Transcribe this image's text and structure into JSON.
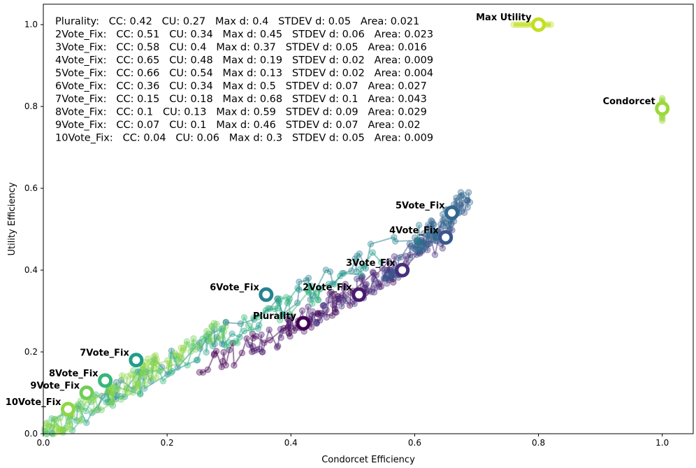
{
  "chart_data": {
    "type": "scatter",
    "xlabel": "Condorcet Efficiency",
    "ylabel": "Utility Efficiency",
    "xlim": [
      0,
      1.05
    ],
    "ylim": [
      0,
      1.05
    ],
    "x_ticks": [
      "0.0",
      "0.2",
      "0.4",
      "0.6",
      "0.8",
      "1.0"
    ],
    "y_ticks": [
      "0.0",
      "0.2",
      "0.4",
      "0.6",
      "0.8",
      "1.0"
    ],
    "grid": false,
    "stats_box": [
      "Plurality:   CC: 0.42   CU: 0.27   Max d: 0.4   STDEV d: 0.05   Area: 0.021",
      "2Vote_Fix:   CC: 0.51   CU: 0.34   Max d: 0.45   STDEV d: 0.06   Area: 0.023",
      "3Vote_Fix:   CC: 0.58   CU: 0.4   Max d: 0.37   STDEV d: 0.05   Area: 0.016",
      "4Vote_Fix:   CC: 0.65   CU: 0.48   Max d: 0.19   STDEV d: 0.02   Area: 0.009",
      "5Vote_Fix:   CC: 0.66   CU: 0.54   Max d: 0.13   STDEV d: 0.02   Area: 0.004",
      "6Vote_Fix:   CC: 0.36   CU: 0.34   Max d: 0.5   STDEV d: 0.07   Area: 0.027",
      "7Vote_Fix:   CC: 0.15   CU: 0.18   Max d: 0.68   STDEV d: 0.1   Area: 0.043",
      "8Vote_Fix:   CC: 0.1   CU: 0.13   Max d: 0.59   STDEV d: 0.09   Area: 0.029",
      "9Vote_Fix:   CC: 0.07   CU: 0.1   Max d: 0.46   STDEV d: 0.07   Area: 0.02",
      "10Vote_Fix:   CC: 0.04   CU: 0.06   Max d: 0.3   STDEV d: 0.05   Area: 0.009"
    ],
    "series": [
      {
        "name": "Plurality",
        "color": "#440154",
        "cc": 0.42,
        "cu": 0.27,
        "max_d": 0.4,
        "stdev_d": 0.05,
        "area": 0.021,
        "cloud": {
          "x": [
            0.25,
            0.58
          ],
          "y": [
            0.15,
            0.4
          ]
        }
      },
      {
        "name": "2Vote_Fix",
        "color": "#481a6c",
        "cc": 0.51,
        "cu": 0.34,
        "max_d": 0.45,
        "stdev_d": 0.06,
        "area": 0.023,
        "cloud": {
          "x": [
            0.33,
            0.62
          ],
          "y": [
            0.2,
            0.45
          ]
        }
      },
      {
        "name": "3Vote_Fix",
        "color": "#472f7d",
        "cc": 0.58,
        "cu": 0.4,
        "max_d": 0.37,
        "stdev_d": 0.05,
        "area": 0.016,
        "cloud": {
          "x": [
            0.42,
            0.67
          ],
          "y": [
            0.27,
            0.5
          ]
        }
      },
      {
        "name": "4Vote_Fix",
        "color": "#39568c",
        "cc": 0.65,
        "cu": 0.48,
        "max_d": 0.19,
        "stdev_d": 0.02,
        "area": 0.009,
        "cloud": {
          "x": [
            0.55,
            0.69
          ],
          "y": [
            0.38,
            0.57
          ]
        }
      },
      {
        "name": "5Vote_Fix",
        "color": "#31688e",
        "cc": 0.66,
        "cu": 0.54,
        "max_d": 0.13,
        "stdev_d": 0.02,
        "area": 0.004,
        "cloud": {
          "x": [
            0.6,
            0.69
          ],
          "y": [
            0.45,
            0.59
          ]
        }
      },
      {
        "name": "6Vote_Fix",
        "color": "#26828e",
        "cc": 0.36,
        "cu": 0.34,
        "max_d": 0.5,
        "stdev_d": 0.07,
        "area": 0.027,
        "cloud": {
          "x": [
            0.05,
            0.62
          ],
          "y": [
            0.05,
            0.51
          ]
        }
      },
      {
        "name": "7Vote_Fix",
        "color": "#1f9e89",
        "cc": 0.15,
        "cu": 0.18,
        "max_d": 0.68,
        "stdev_d": 0.1,
        "area": 0.043,
        "cloud": {
          "x": [
            0.0,
            0.56
          ],
          "y": [
            0.0,
            0.45
          ]
        }
      },
      {
        "name": "8Vote_Fix",
        "color": "#35b779",
        "cc": 0.1,
        "cu": 0.13,
        "max_d": 0.59,
        "stdev_d": 0.09,
        "area": 0.029,
        "cloud": {
          "x": [
            0.0,
            0.45
          ],
          "y": [
            0.0,
            0.36
          ]
        }
      },
      {
        "name": "9Vote_Fix",
        "color": "#6ece58",
        "cc": 0.07,
        "cu": 0.1,
        "max_d": 0.46,
        "stdev_d": 0.07,
        "area": 0.02,
        "cloud": {
          "x": [
            0.0,
            0.3
          ],
          "y": [
            0.0,
            0.27
          ]
        }
      },
      {
        "name": "10Vote_Fix",
        "color": "#90d743",
        "cc": 0.04,
        "cu": 0.06,
        "max_d": 0.3,
        "stdev_d": 0.05,
        "area": 0.009,
        "cloud": {
          "x": [
            0.0,
            0.23
          ],
          "y": [
            0.0,
            0.21
          ]
        }
      },
      {
        "name": "Condorcet",
        "color": "#9bd93c",
        "cc": 1.0,
        "cu": 0.795,
        "cloud": {
          "x": [
            1.0,
            1.0
          ],
          "y": [
            0.765,
            0.82
          ]
        }
      },
      {
        "name": "Max Utility",
        "color": "#c2df23",
        "cc": 0.8,
        "cu": 1.0,
        "cloud": {
          "x": [
            0.76,
            0.82
          ],
          "y": [
            1.0,
            1.0
          ]
        }
      }
    ]
  }
}
